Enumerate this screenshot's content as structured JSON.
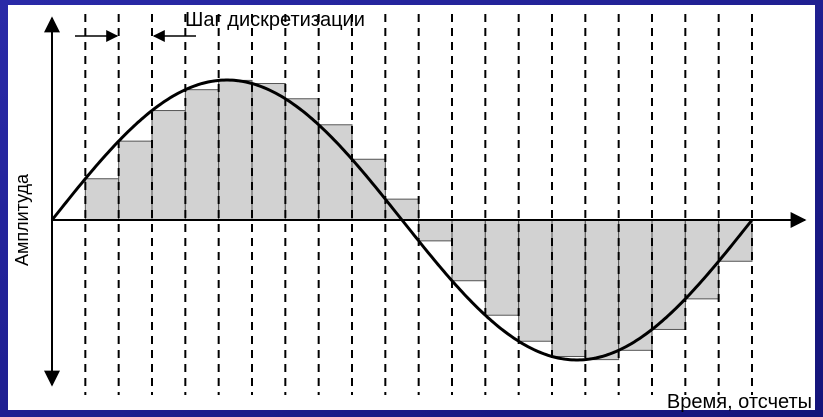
{
  "title": "Шаг дискретизации",
  "y_axis_label": "Амплитуда",
  "x_axis_label": "Время, отсчеты"
}
